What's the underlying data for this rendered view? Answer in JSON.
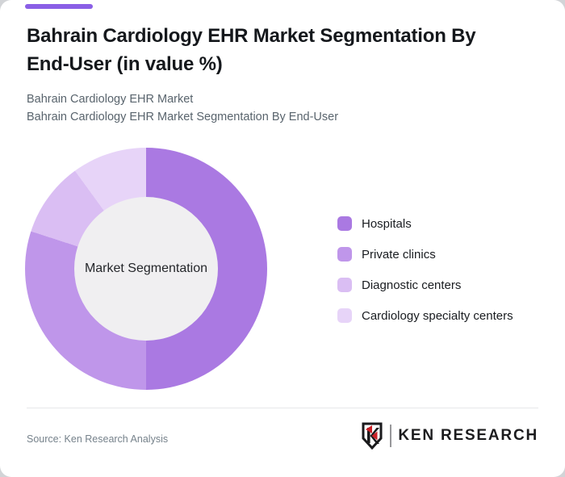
{
  "page": {
    "title": "Bahrain Cardiology EHR Market Segmentation By End-User (in value %)",
    "subtitle_line1": "Bahrain Cardiology EHR Market",
    "subtitle_line2": "Bahrain Cardiology EHR Market Segmentation By End-User",
    "source": "Source: Ken Research Analysis",
    "brand_name": "KEN RESEARCH",
    "accent_color": "#8a5fe6",
    "brand_red": "#cb2027",
    "brand_black": "#1a1a1c"
  },
  "chart_data": {
    "type": "pie",
    "donut": true,
    "title": "Bahrain Cardiology EHR Market Segmentation By End-User (in value %)",
    "center_label": "Market Segmentation",
    "categories": [
      "Hospitals",
      "Private clinics",
      "Diagnostic centers",
      "Cardiology specialty centers"
    ],
    "values": [
      50,
      30,
      10,
      10
    ],
    "unit": "percent (in value %)",
    "colors": [
      "#aa79e2",
      "#bf96ea",
      "#dabef3",
      "#e7d4f8"
    ],
    "hole_color": "#f0eff1",
    "start_angle_deg": 0,
    "direction": "clockwise",
    "legend_position": "right"
  }
}
